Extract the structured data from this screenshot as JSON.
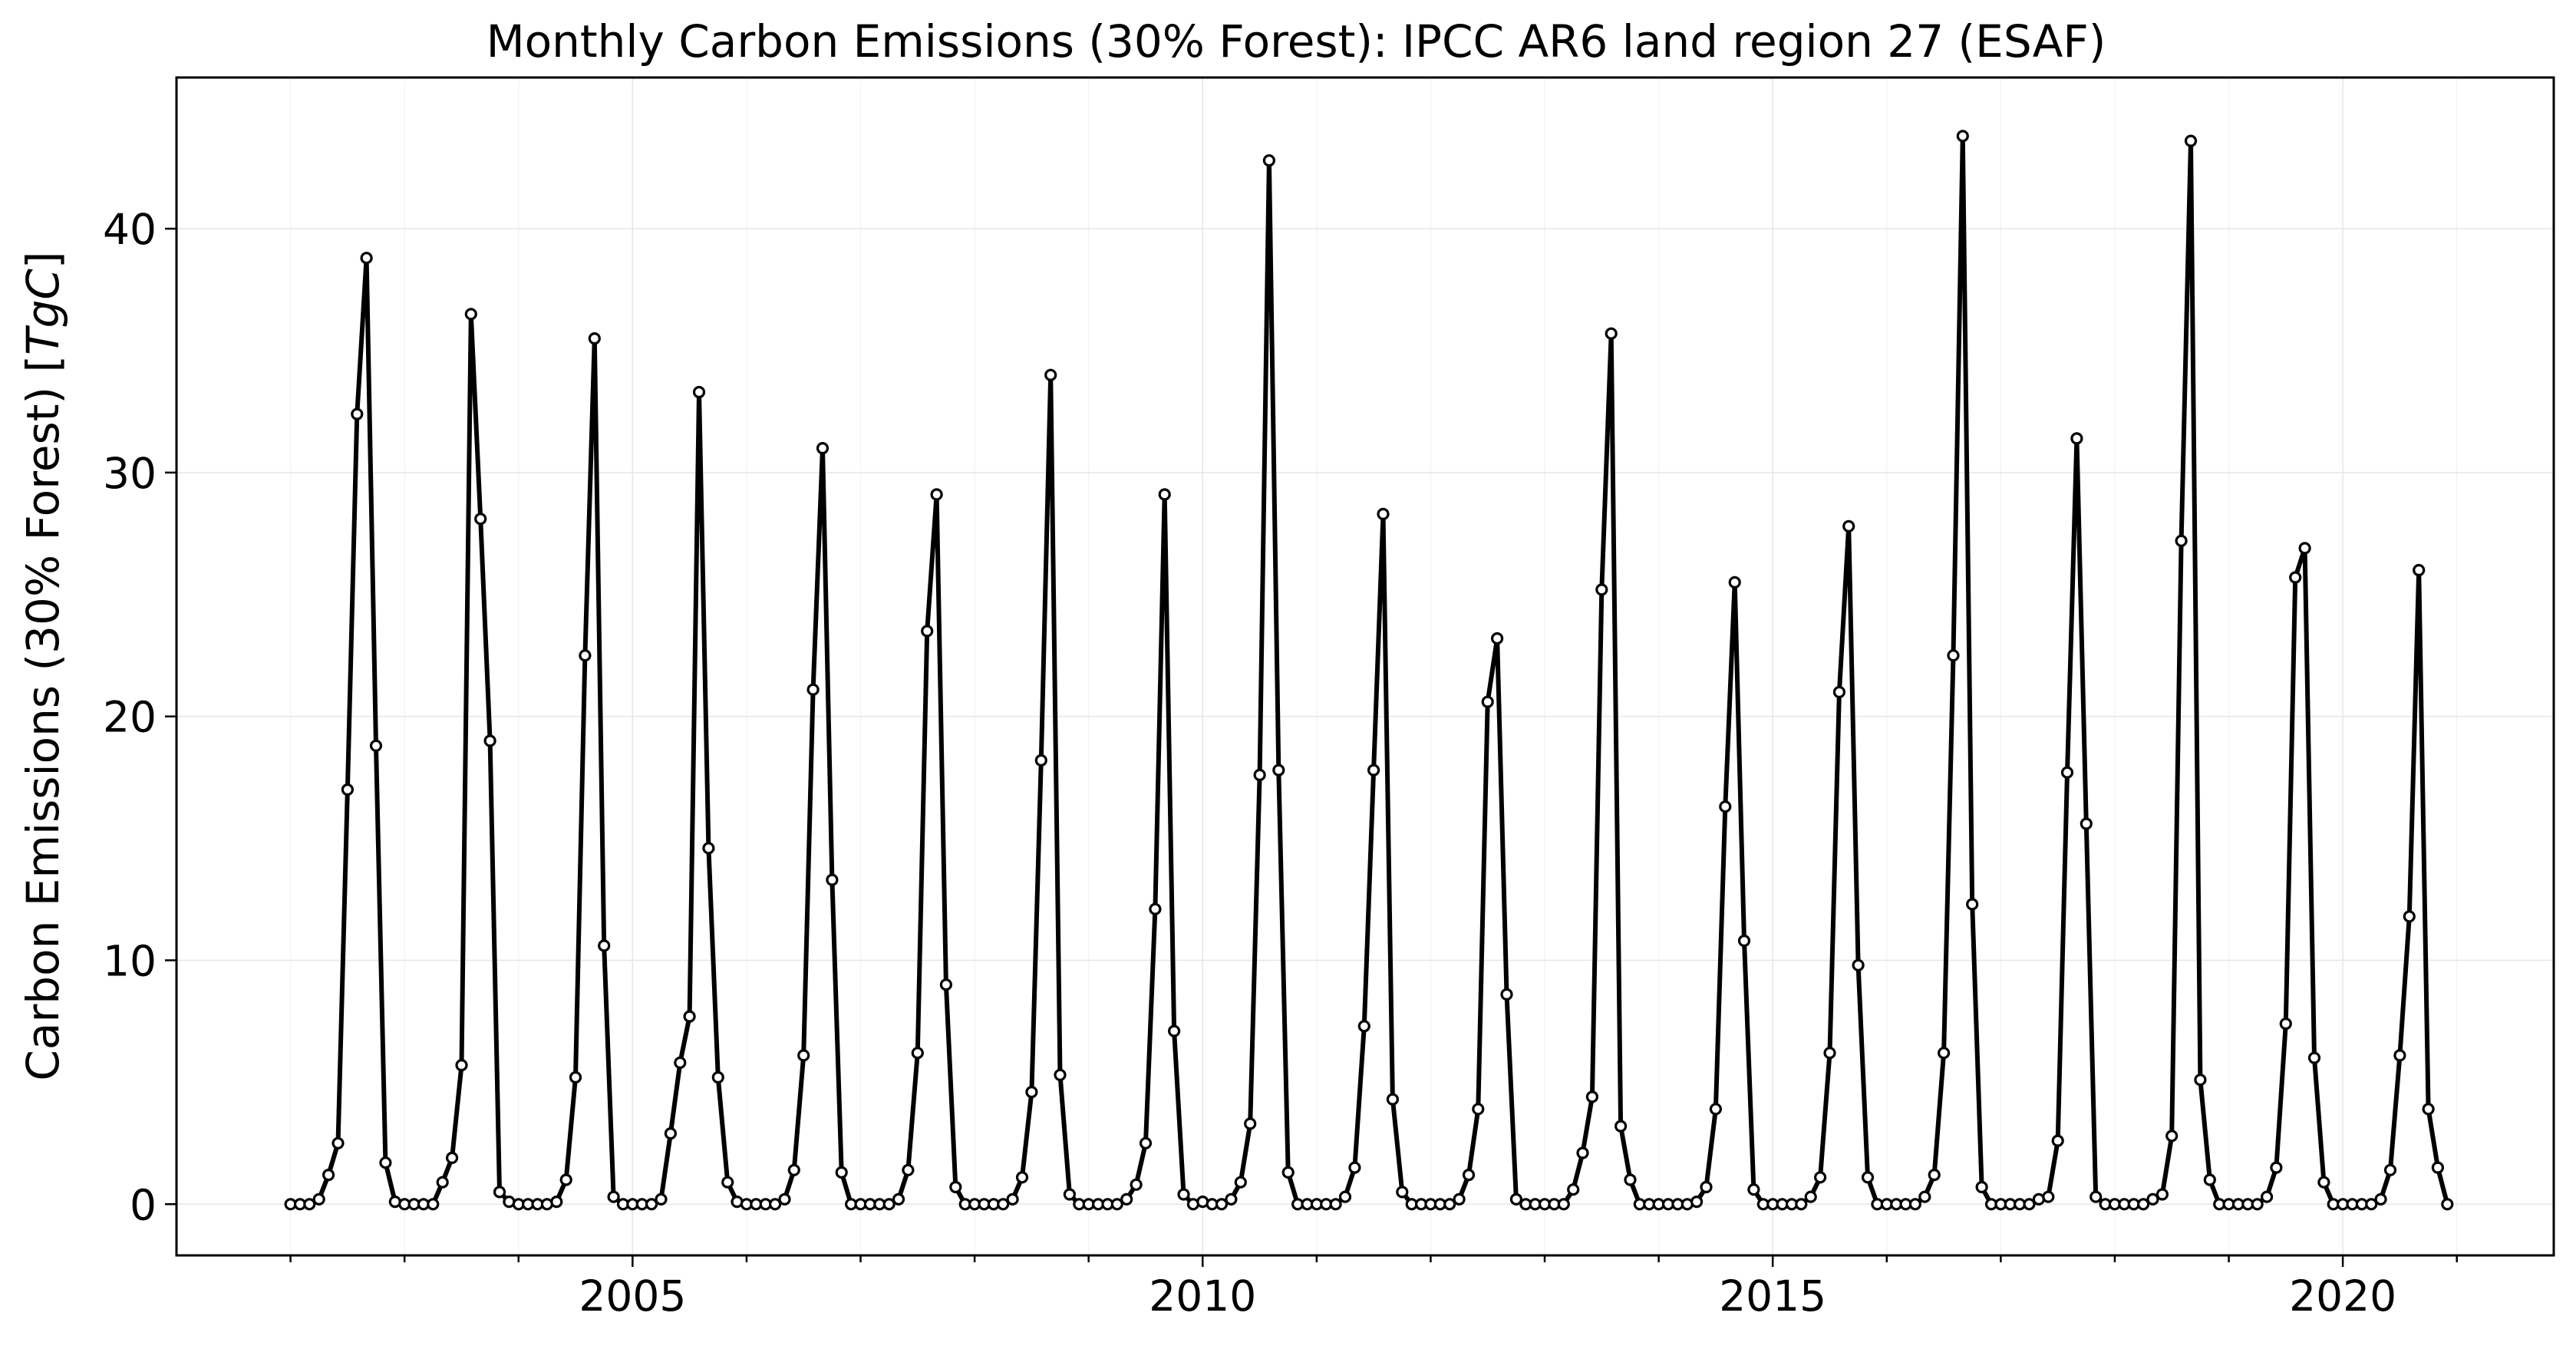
{
  "chart_data": {
    "type": "line",
    "title": "Monthly Carbon Emissions (30% Forest): IPCC AR6 land region 27 (ESAF)",
    "xlabel": "",
    "ylabel": "Carbon Emissions (30% Forest) [",
    "ylabel_unit": "TgC",
    "ylabel_close": "]",
    "xlim": [
      2001.0,
      2021.85
    ],
    "ylim": [
      -2.1,
      46.2
    ],
    "x_ticks": [
      2005,
      2010,
      2015,
      2020
    ],
    "x_tick_labels": [
      "2005",
      "2010",
      "2015",
      "2020"
    ],
    "x_minor_ticks": [
      2002,
      2003,
      2004,
      2006,
      2007,
      2008,
      2009,
      2011,
      2012,
      2013,
      2014,
      2016,
      2017,
      2018,
      2019,
      2021
    ],
    "y_ticks": [
      0,
      10,
      20,
      30,
      40
    ],
    "y_tick_labels": [
      "0",
      "10",
      "20",
      "30",
      "40"
    ],
    "grid": true,
    "x_start_year": 2002,
    "series": [
      {
        "color": "#000000",
        "marker": "circle-open",
        "values": [
          0.0,
          0.0,
          0.0,
          0.2,
          1.2,
          2.5,
          17.0,
          32.4,
          38.8,
          18.8,
          1.7,
          0.1,
          0.0,
          0.0,
          0.0,
          0.0,
          0.9,
          1.9,
          5.7,
          36.5,
          28.1,
          19.0,
          0.5,
          0.1,
          0.0,
          0.0,
          0.0,
          0.0,
          0.1,
          1.0,
          5.2,
          22.5,
          35.5,
          10.6,
          0.3,
          0.0,
          0.0,
          0.0,
          0.0,
          0.2,
          2.9,
          5.8,
          7.7,
          33.3,
          14.6,
          5.2,
          0.9,
          0.1,
          0.0,
          0.0,
          0.0,
          0.0,
          0.2,
          1.4,
          6.1,
          21.1,
          31.0,
          13.3,
          1.3,
          0.0,
          0.0,
          0.0,
          0.0,
          0.0,
          0.2,
          1.4,
          6.2,
          23.5,
          29.1,
          9.0,
          0.7,
          0.0,
          0.0,
          0.0,
          0.0,
          0.0,
          0.2,
          1.1,
          4.6,
          18.2,
          34.0,
          5.3,
          0.4,
          0.0,
          0.0,
          0.0,
          0.0,
          0.0,
          0.2,
          0.8,
          2.5,
          12.1,
          29.1,
          7.1,
          0.4,
          0.0,
          0.1,
          0.0,
          0.0,
          0.2,
          0.9,
          3.3,
          17.6,
          42.8,
          17.8,
          1.3,
          0.0,
          0.0,
          0.0,
          0.0,
          0.0,
          0.3,
          1.5,
          7.3,
          17.8,
          28.3,
          4.3,
          0.5,
          0.0,
          0.0,
          0.0,
          0.0,
          0.0,
          0.2,
          1.2,
          3.9,
          20.6,
          23.2,
          8.6,
          0.2,
          0.0,
          0.0,
          0.0,
          0.0,
          0.0,
          0.6,
          2.1,
          4.4,
          25.2,
          35.7,
          3.2,
          1.0,
          0.0,
          0.0,
          0.0,
          0.0,
          0.0,
          0.0,
          0.1,
          0.7,
          3.9,
          16.3,
          25.5,
          10.8,
          0.6,
          0.0,
          0.0,
          0.0,
          0.0,
          0.0,
          0.3,
          1.1,
          6.2,
          21.0,
          27.8,
          9.8,
          1.1,
          0.0,
          0.0,
          0.0,
          0.0,
          0.0,
          0.3,
          1.2,
          6.2,
          22.5,
          43.8,
          12.3,
          0.7,
          0.0,
          0.0,
          0.0,
          0.0,
          0.0,
          0.2,
          0.3,
          2.6,
          17.7,
          31.4,
          15.6,
          0.3,
          0.0,
          0.0,
          0.0,
          0.0,
          0.0,
          0.2,
          0.4,
          2.8,
          27.2,
          43.6,
          5.1,
          1.0,
          0.0,
          0.0,
          0.0,
          0.0,
          0.0,
          0.3,
          1.5,
          7.4,
          25.7,
          26.9,
          6.0,
          0.9,
          0.0,
          0.0,
          0.0,
          0.0,
          0.0,
          0.2,
          1.4,
          6.1,
          11.8,
          26.0,
          3.9,
          1.5,
          0.0
        ]
      }
    ]
  }
}
